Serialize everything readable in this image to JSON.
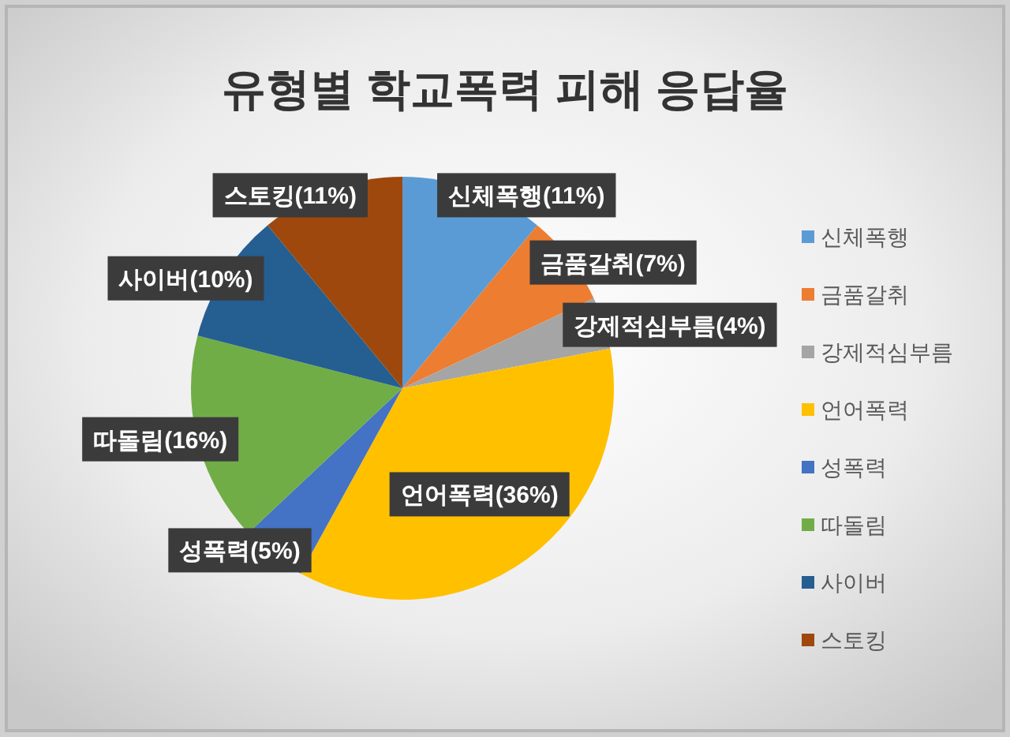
{
  "chart_data": {
    "type": "pie",
    "title": "유형별 학교폭력 피해 응답율",
    "categories": [
      "신체폭행",
      "금품갈취",
      "강제적심부름",
      "언어폭력",
      "성폭력",
      "따돌림",
      "사이버",
      "스토킹"
    ],
    "values": [
      11,
      7,
      4,
      36,
      5,
      16,
      10,
      11
    ],
    "colors": [
      "#5b9bd5",
      "#ed7d31",
      "#a5a5a5",
      "#ffc000",
      "#4472c4",
      "#70ad47",
      "#255e91",
      "#9e480e"
    ],
    "value_labels": [
      "신체폭행(11%)",
      "금품갈취(7%)",
      "강제적심부름(4%)",
      "언어폭력(36%)",
      "성폭력(5%)",
      "따돌림(16%)",
      "사이버(10%)",
      "스토킹(11%)"
    ],
    "legend": "right"
  }
}
